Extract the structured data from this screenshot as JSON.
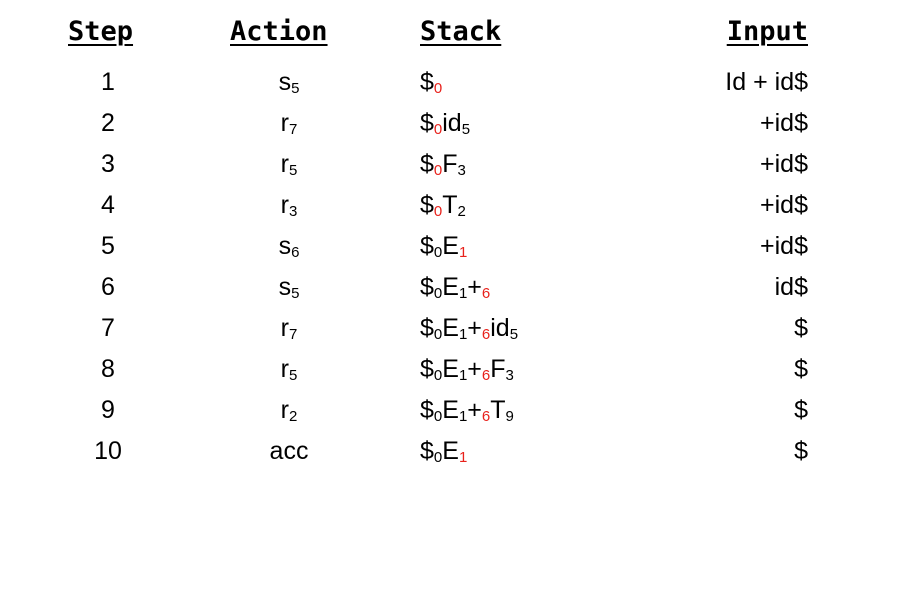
{
  "headers": {
    "step": "Step",
    "action": "Action",
    "stack": "Stack",
    "input": "Input"
  },
  "colors": {
    "highlight": "#e8211b",
    "text": "#000000"
  },
  "rows": [
    {
      "step": "1",
      "action": {
        "base": "s",
        "sub": "5"
      },
      "stack": [
        {
          "t": "$"
        },
        {
          "t": "0",
          "sub": true,
          "red": true
        }
      ],
      "input": "Id + id$"
    },
    {
      "step": "2",
      "action": {
        "base": "r",
        "sub": "7"
      },
      "stack": [
        {
          "t": "$"
        },
        {
          "t": "0",
          "sub": true,
          "red": true
        },
        {
          "t": "id"
        },
        {
          "t": "5",
          "sub": true
        }
      ],
      "input": "+id$"
    },
    {
      "step": "3",
      "action": {
        "base": "r",
        "sub": "5"
      },
      "stack": [
        {
          "t": "$"
        },
        {
          "t": "0",
          "sub": true,
          "red": true
        },
        {
          "t": "F"
        },
        {
          "t": "3",
          "sub": true
        }
      ],
      "input": "+id$"
    },
    {
      "step": "4",
      "action": {
        "base": "r",
        "sub": "3"
      },
      "stack": [
        {
          "t": "$"
        },
        {
          "t": "0",
          "sub": true,
          "red": true
        },
        {
          "t": "T"
        },
        {
          "t": "2",
          "sub": true
        }
      ],
      "input": "+id$"
    },
    {
      "step": "5",
      "action": {
        "base": "s",
        "sub": "6"
      },
      "stack": [
        {
          "t": "$"
        },
        {
          "t": "0",
          "sub": true
        },
        {
          "t": "E"
        },
        {
          "t": "1",
          "sub": true,
          "red": true
        }
      ],
      "input": "+id$"
    },
    {
      "step": "6",
      "action": {
        "base": "s",
        "sub": "5"
      },
      "stack": [
        {
          "t": "$"
        },
        {
          "t": "0",
          "sub": true
        },
        {
          "t": "E"
        },
        {
          "t": "1",
          "sub": true
        },
        {
          "t": "+"
        },
        {
          "t": "6",
          "sub": true,
          "red": true
        }
      ],
      "input": "id$"
    },
    {
      "step": "7",
      "action": {
        "base": "r",
        "sub": "7"
      },
      "stack": [
        {
          "t": "$"
        },
        {
          "t": "0",
          "sub": true
        },
        {
          "t": "E"
        },
        {
          "t": "1",
          "sub": true
        },
        {
          "t": "+"
        },
        {
          "t": "6",
          "sub": true,
          "red": true
        },
        {
          "t": "id"
        },
        {
          "t": "5",
          "sub": true
        }
      ],
      "input": "$"
    },
    {
      "step": "8",
      "action": {
        "base": "r",
        "sub": "5"
      },
      "stack": [
        {
          "t": "$"
        },
        {
          "t": "0",
          "sub": true
        },
        {
          "t": "E"
        },
        {
          "t": "1",
          "sub": true
        },
        {
          "t": "+"
        },
        {
          "t": "6",
          "sub": true,
          "red": true
        },
        {
          "t": "F"
        },
        {
          "t": "3",
          "sub": true
        }
      ],
      "input": "$"
    },
    {
      "step": "9",
      "action": {
        "base": "r",
        "sub": "2"
      },
      "stack": [
        {
          "t": "$"
        },
        {
          "t": "0",
          "sub": true
        },
        {
          "t": "E"
        },
        {
          "t": "1",
          "sub": true
        },
        {
          "t": "+"
        },
        {
          "t": "6",
          "sub": true,
          "red": true
        },
        {
          "t": "T"
        },
        {
          "t": "9",
          "sub": true
        }
      ],
      "input": "$"
    },
    {
      "step": "10",
      "action": {
        "base": "acc",
        "sub": ""
      },
      "stack": [
        {
          "t": "$"
        },
        {
          "t": "0",
          "sub": true
        },
        {
          "t": "E"
        },
        {
          "t": "1",
          "sub": true,
          "red": true
        }
      ],
      "input": "$"
    }
  ]
}
